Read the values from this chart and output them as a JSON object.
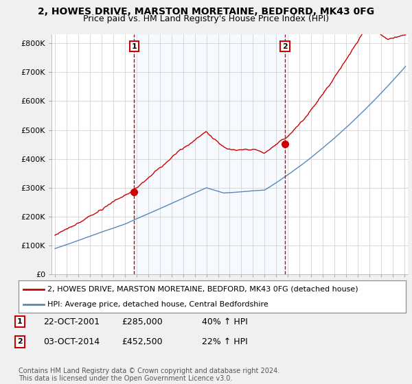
{
  "title": "2, HOWES DRIVE, MARSTON MORETAINE, BEDFORD, MK43 0FG",
  "subtitle": "Price paid vs. HM Land Registry's House Price Index (HPI)",
  "ylabel_ticks": [
    "£0",
    "£100K",
    "£200K",
    "£300K",
    "£400K",
    "£500K",
    "£600K",
    "£700K",
    "£800K"
  ],
  "ytick_values": [
    0,
    100000,
    200000,
    300000,
    400000,
    500000,
    600000,
    700000,
    800000
  ],
  "ylim": [
    0,
    830000
  ],
  "xlim_left": 1994.7,
  "xlim_right": 2025.3,
  "purchase1_date": 2001.8,
  "purchase1_price": 285000,
  "purchase2_date": 2014.75,
  "purchase2_price": 452500,
  "legend_line1": "2, HOWES DRIVE, MARSTON MORETAINE, BEDFORD, MK43 0FG (detached house)",
  "legend_line2": "HPI: Average price, detached house, Central Bedfordshire",
  "table_row1": [
    "1",
    "22-OCT-2001",
    "£285,000",
    "40% ↑ HPI"
  ],
  "table_row2": [
    "2",
    "03-OCT-2014",
    "£452,500",
    "22% ↑ HPI"
  ],
  "footnote": "Contains HM Land Registry data © Crown copyright and database right 2024.\nThis data is licensed under the Open Government Licence v3.0.",
  "red_color": "#cc0000",
  "blue_color": "#5588bb",
  "shade_color": "#ddeeff",
  "background_color": "#f0f0f0",
  "plot_bg_color": "#ffffff",
  "grid_color": "#cccccc",
  "title_fontsize": 10,
  "subtitle_fontsize": 9,
  "tick_fontsize": 8,
  "legend_fontsize": 8,
  "table_fontsize": 9,
  "footnote_fontsize": 7
}
